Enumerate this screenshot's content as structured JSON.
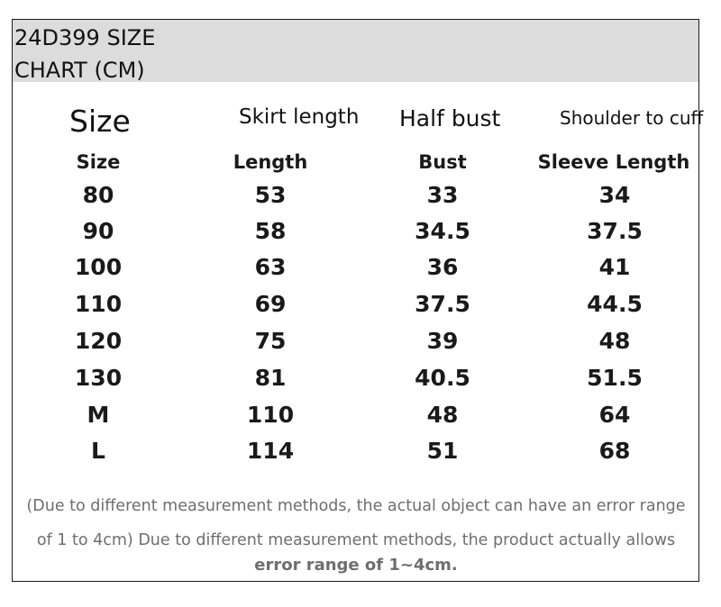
{
  "chart": {
    "title": "24D399 SIZE\nCHART (CM)"
  },
  "labels": {
    "size": "Size",
    "skirt_length": "Skirt length",
    "half_bust": "Half bust",
    "shoulder_to_cuff": "Shoulder to cuff"
  },
  "table": {
    "headers": [
      "Size",
      "Length",
      "Bust",
      "Sleeve Length"
    ],
    "rows": [
      [
        "80",
        "53",
        "33",
        "34"
      ],
      [
        "90",
        "58",
        "34.5",
        "37.5"
      ],
      [
        "100",
        "63",
        "36",
        "41"
      ],
      [
        "110",
        "69",
        "37.5",
        "44.5"
      ],
      [
        "120",
        "75",
        "39",
        "48"
      ],
      [
        "130",
        "81",
        "40.5",
        "51.5"
      ],
      [
        "M",
        "110",
        "48",
        "64"
      ],
      [
        "L",
        "114",
        "51",
        "68"
      ]
    ]
  },
  "notes": {
    "line1": "(Due to different measurement methods, the actual object can have an error range",
    "line2": "of 1 to 4cm) Due to different measurement methods, the product actually allows",
    "line3": "error range of 1~4cm."
  }
}
